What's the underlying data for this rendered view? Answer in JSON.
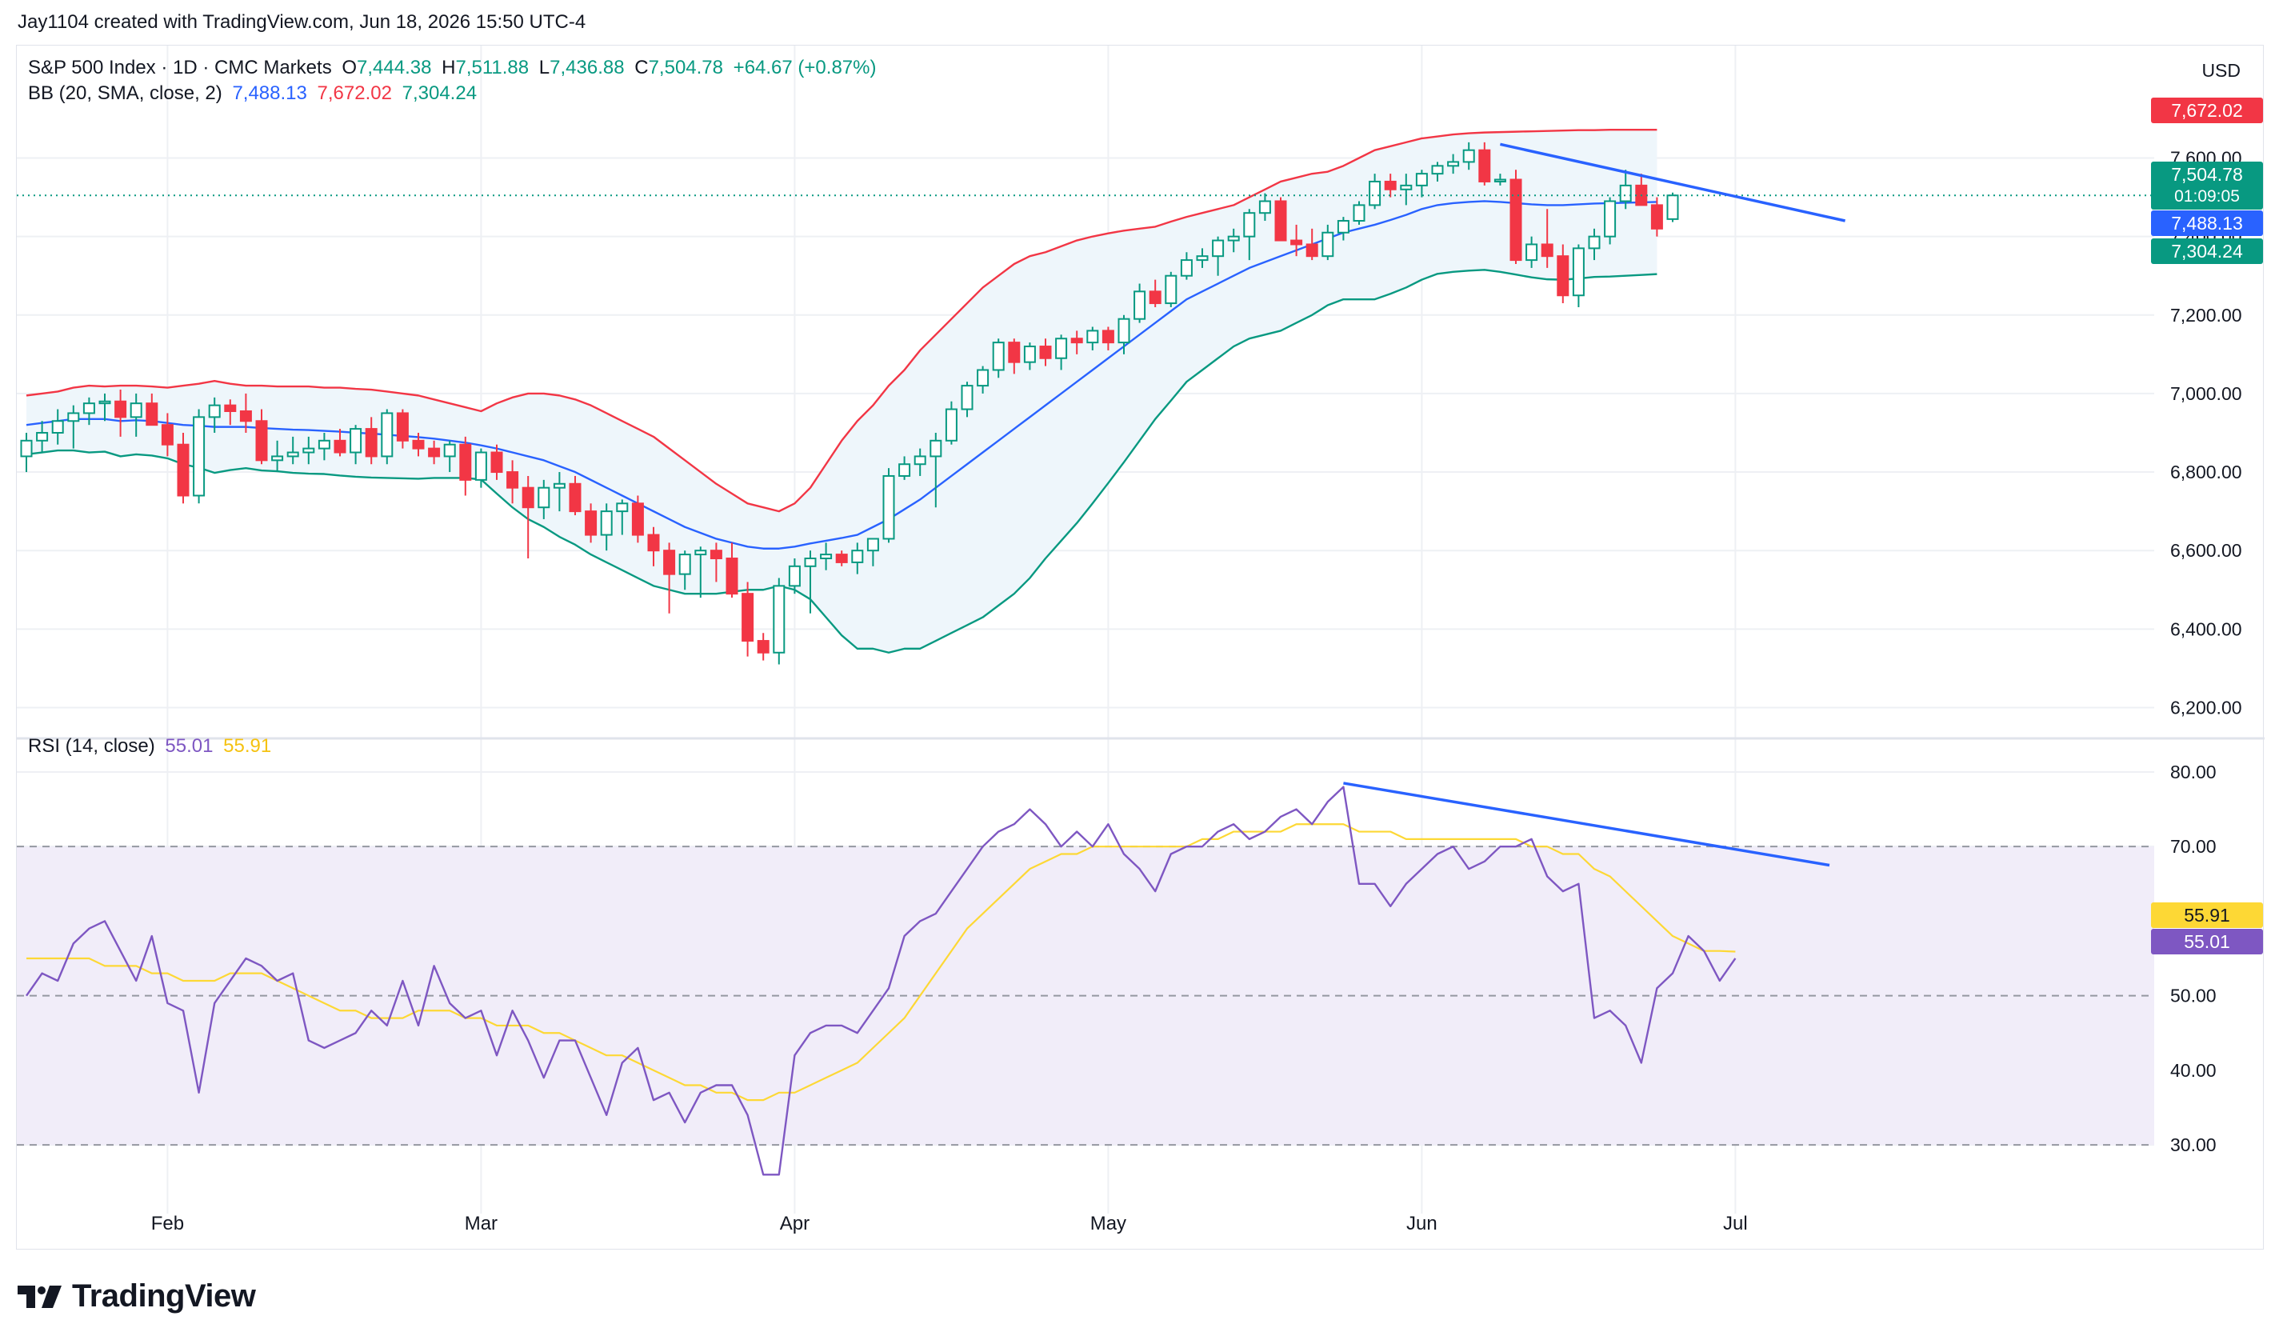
{
  "header": {
    "creator": "Jay1104 created with TradingView.com, Jun 18, 2026 15:50 UTC-4"
  },
  "legend": {
    "symbol": "S&P 500 Index · 1D · CMC Markets",
    "o_label": "O",
    "o": "7,444.38",
    "h_label": "H",
    "h": "7,511.88",
    "l_label": "L",
    "l": "7,436.88",
    "c_label": "C",
    "c": "7,504.78",
    "change": "+64.67 (+0.87%)",
    "bb_label": "BB (20, SMA, close, 2)",
    "bb_basis": "7,488.13",
    "bb_upper": "7,672.02",
    "bb_lower": "7,304.24",
    "rsi_label": "RSI (14, close)",
    "rsi_value": "55.01",
    "rsi_ma": "55.91"
  },
  "axis": {
    "currency": "USD",
    "price_ticks": [
      "7,600.00",
      "7,400.00",
      "7,200.00",
      "7,000.00",
      "6,800.00",
      "6,600.00",
      "6,400.00",
      "6,200.00"
    ],
    "rsi_ticks": [
      "80.00",
      "70.00",
      "60.00",
      "50.00",
      "40.00",
      "30.00"
    ],
    "months": [
      "Feb",
      "Mar",
      "Apr",
      "May",
      "Jun",
      "Jul"
    ]
  },
  "price_badges": {
    "upper": "7,672.02",
    "last": "7,504.78",
    "countdown": "01:09:05",
    "basis": "7,488.13",
    "lower": "7,304.24",
    "rsi_ma": "55.91",
    "rsi": "55.01"
  },
  "footer": {
    "brand": "TradingView"
  },
  "colors": {
    "up": "#089981",
    "down": "#f23645",
    "bb_basis": "#2962ff",
    "bb_upper": "#f23645",
    "bb_lower": "#089981",
    "bb_fill": "#eef6fb",
    "rsi": "#7e57c2",
    "rsi_ma": "#fdd835",
    "rsi_band": "#f1edf9",
    "trendline": "#2962ff"
  },
  "chart_data": [
    {
      "type": "candlestick",
      "title": "S&P 500 Index · 1D · CMC Markets",
      "ylim": [
        6150,
        7760
      ],
      "months": [
        {
          "label": "Feb",
          "index": 9
        },
        {
          "label": "Mar",
          "index": 29
        },
        {
          "label": "Apr",
          "index": 49
        },
        {
          "label": "May",
          "index": 69
        },
        {
          "label": "Jun",
          "index": 89
        },
        {
          "label": "Jul",
          "index": 109
        }
      ],
      "ohlc": [
        [
          6840,
          6900,
          6800,
          6880
        ],
        [
          6880,
          6930,
          6850,
          6900
        ],
        [
          6900,
          6960,
          6870,
          6930
        ],
        [
          6930,
          6970,
          6860,
          6950
        ],
        [
          6950,
          6990,
          6920,
          6975
        ],
        [
          6975,
          7000,
          6930,
          6980
        ],
        [
          6980,
          7010,
          6890,
          6940
        ],
        [
          6940,
          7000,
          6890,
          6975
        ],
        [
          6975,
          7000,
          6920,
          6920
        ],
        [
          6920,
          6950,
          6840,
          6870
        ],
        [
          6870,
          6900,
          6720,
          6740
        ],
        [
          6740,
          6960,
          6720,
          6940
        ],
        [
          6940,
          6990,
          6900,
          6970
        ],
        [
          6970,
          6985,
          6920,
          6955
        ],
        [
          6955,
          7000,
          6900,
          6930
        ],
        [
          6930,
          6960,
          6820,
          6830
        ],
        [
          6830,
          6880,
          6800,
          6840
        ],
        [
          6840,
          6890,
          6820,
          6850
        ],
        [
          6850,
          6890,
          6820,
          6860
        ],
        [
          6860,
          6900,
          6830,
          6880
        ],
        [
          6880,
          6910,
          6840,
          6850
        ],
        [
          6850,
          6920,
          6820,
          6910
        ],
        [
          6910,
          6940,
          6820,
          6840
        ],
        [
          6840,
          6960,
          6820,
          6950
        ],
        [
          6950,
          6960,
          6860,
          6880
        ],
        [
          6880,
          6900,
          6840,
          6860
        ],
        [
          6860,
          6880,
          6820,
          6840
        ],
        [
          6840,
          6880,
          6800,
          6870
        ],
        [
          6870,
          6890,
          6740,
          6780
        ],
        [
          6780,
          6860,
          6760,
          6850
        ],
        [
          6850,
          6870,
          6780,
          6800
        ],
        [
          6800,
          6830,
          6720,
          6760
        ],
        [
          6760,
          6790,
          6580,
          6710
        ],
        [
          6710,
          6780,
          6680,
          6760
        ],
        [
          6760,
          6800,
          6700,
          6770
        ],
        [
          6770,
          6790,
          6690,
          6700
        ],
        [
          6700,
          6720,
          6620,
          6640
        ],
        [
          6640,
          6720,
          6600,
          6700
        ],
        [
          6700,
          6730,
          6640,
          6720
        ],
        [
          6720,
          6740,
          6620,
          6640
        ],
        [
          6640,
          6660,
          6560,
          6600
        ],
        [
          6600,
          6620,
          6440,
          6540
        ],
        [
          6540,
          6600,
          6500,
          6590
        ],
        [
          6590,
          6610,
          6480,
          6600
        ],
        [
          6600,
          6620,
          6520,
          6580
        ],
        [
          6580,
          6620,
          6480,
          6490
        ],
        [
          6490,
          6520,
          6330,
          6370
        ],
        [
          6370,
          6390,
          6320,
          6340
        ],
        [
          6340,
          6530,
          6310,
          6510
        ],
        [
          6510,
          6580,
          6490,
          6560
        ],
        [
          6560,
          6600,
          6440,
          6580
        ],
        [
          6580,
          6620,
          6550,
          6590
        ],
        [
          6590,
          6600,
          6560,
          6570
        ],
        [
          6570,
          6620,
          6540,
          6600
        ],
        [
          6600,
          6630,
          6560,
          6630
        ],
        [
          6630,
          6810,
          6620,
          6790
        ],
        [
          6790,
          6840,
          6780,
          6820
        ],
        [
          6820,
          6860,
          6790,
          6840
        ],
        [
          6840,
          6900,
          6710,
          6880
        ],
        [
          6880,
          6980,
          6870,
          6960
        ],
        [
          6960,
          7030,
          6940,
          7020
        ],
        [
          7020,
          7070,
          7000,
          7060
        ],
        [
          7060,
          7140,
          7040,
          7130
        ],
        [
          7130,
          7140,
          7050,
          7080
        ],
        [
          7080,
          7130,
          7060,
          7120
        ],
        [
          7120,
          7140,
          7070,
          7090
        ],
        [
          7090,
          7150,
          7060,
          7140
        ],
        [
          7140,
          7160,
          7100,
          7130
        ],
        [
          7130,
          7170,
          7110,
          7160
        ],
        [
          7160,
          7170,
          7110,
          7130
        ],
        [
          7130,
          7200,
          7100,
          7190
        ],
        [
          7190,
          7280,
          7180,
          7260
        ],
        [
          7260,
          7290,
          7220,
          7230
        ],
        [
          7230,
          7310,
          7220,
          7300
        ],
        [
          7300,
          7360,
          7290,
          7340
        ],
        [
          7340,
          7370,
          7320,
          7350
        ],
        [
          7350,
          7400,
          7300,
          7390
        ],
        [
          7390,
          7420,
          7360,
          7400
        ],
        [
          7400,
          7470,
          7340,
          7460
        ],
        [
          7460,
          7510,
          7440,
          7490
        ],
        [
          7490,
          7500,
          7390,
          7390
        ],
        [
          7390,
          7430,
          7350,
          7380
        ],
        [
          7380,
          7420,
          7340,
          7350
        ],
        [
          7350,
          7430,
          7340,
          7410
        ],
        [
          7410,
          7450,
          7390,
          7440
        ],
        [
          7440,
          7490,
          7430,
          7480
        ],
        [
          7480,
          7560,
          7470,
          7540
        ],
        [
          7540,
          7560,
          7500,
          7520
        ],
        [
          7520,
          7560,
          7480,
          7530
        ],
        [
          7530,
          7570,
          7500,
          7560
        ],
        [
          7560,
          7590,
          7540,
          7580
        ],
        [
          7580,
          7610,
          7560,
          7590
        ],
        [
          7590,
          7640,
          7570,
          7620
        ],
        [
          7620,
          7640,
          7530,
          7540
        ],
        [
          7540,
          7560,
          7530,
          7545
        ],
        [
          7545,
          7570,
          7330,
          7340
        ],
        [
          7340,
          7400,
          7320,
          7380
        ],
        [
          7380,
          7470,
          7320,
          7350
        ],
        [
          7350,
          7380,
          7230,
          7250
        ],
        [
          7250,
          7380,
          7220,
          7370
        ],
        [
          7370,
          7420,
          7340,
          7400
        ],
        [
          7400,
          7500,
          7380,
          7490
        ],
        [
          7490,
          7570,
          7470,
          7530
        ],
        [
          7530,
          7560,
          7480,
          7480
        ],
        [
          7480,
          7500,
          7400,
          7420
        ],
        [
          7444.38,
          7511.88,
          7436.88,
          7504.78
        ]
      ],
      "bb_upper": [
        6995,
        7000,
        7005,
        7015,
        7020,
        7018,
        7020,
        7020,
        7018,
        7015,
        7020,
        7025,
        7032,
        7025,
        7020,
        7020,
        7018,
        7018,
        7018,
        7015,
        7015,
        7012,
        7010,
        7005,
        7000,
        6995,
        6985,
        6975,
        6965,
        6955,
        6975,
        6990,
        7000,
        7000,
        6995,
        6985,
        6970,
        6950,
        6930,
        6910,
        6890,
        6860,
        6830,
        6800,
        6770,
        6745,
        6720,
        6710,
        6700,
        6720,
        6760,
        6820,
        6880,
        6930,
        6970,
        7020,
        7060,
        7110,
        7150,
        7190,
        7230,
        7270,
        7300,
        7330,
        7350,
        7360,
        7375,
        7390,
        7400,
        7408,
        7415,
        7420,
        7425,
        7438,
        7450,
        7460,
        7470,
        7480,
        7500,
        7520,
        7540,
        7550,
        7560,
        7565,
        7580,
        7600,
        7620,
        7630,
        7640,
        7650,
        7655,
        7660,
        7663,
        7665,
        7666,
        7667,
        7668,
        7669,
        7670,
        7671,
        7671,
        7672,
        7672,
        7672,
        7672.02
      ],
      "bb_basis": [
        6920,
        6925,
        6930,
        6935,
        6935,
        6935,
        6930,
        6932,
        6930,
        6925,
        6920,
        6918,
        6915,
        6915,
        6915,
        6912,
        6910,
        6908,
        6907,
        6905,
        6903,
        6900,
        6898,
        6895,
        6892,
        6889,
        6885,
        6880,
        6875,
        6868,
        6860,
        6850,
        6840,
        6830,
        6815,
        6800,
        6780,
        6760,
        6740,
        6720,
        6700,
        6680,
        6660,
        6645,
        6630,
        6620,
        6610,
        6605,
        6605,
        6610,
        6618,
        6625,
        6632,
        6640,
        6660,
        6680,
        6705,
        6730,
        6760,
        6790,
        6820,
        6850,
        6880,
        6910,
        6940,
        6970,
        7000,
        7030,
        7060,
        7090,
        7120,
        7150,
        7180,
        7210,
        7240,
        7260,
        7280,
        7300,
        7320,
        7335,
        7350,
        7365,
        7380,
        7395,
        7410,
        7420,
        7430,
        7442,
        7455,
        7470,
        7480,
        7485,
        7488,
        7490,
        7488,
        7485,
        7482,
        7480,
        7480,
        7482,
        7484,
        7485,
        7486,
        7487,
        7488.13
      ],
      "bb_lower": [
        6845,
        6850,
        6855,
        6855,
        6850,
        6852,
        6840,
        6845,
        6842,
        6835,
        6820,
        6811,
        6798,
        6805,
        6810,
        6804,
        6802,
        6798,
        6796,
        6795,
        6791,
        6788,
        6786,
        6785,
        6784,
        6783,
        6785,
        6785,
        6785,
        6781,
        6745,
        6710,
        6680,
        6660,
        6635,
        6615,
        6590,
        6570,
        6550,
        6530,
        6510,
        6500,
        6490,
        6490,
        6490,
        6495,
        6500,
        6500,
        6510,
        6500,
        6476,
        6430,
        6384,
        6350,
        6350,
        6340,
        6350,
        6350,
        6370,
        6390,
        6410,
        6430,
        6460,
        6490,
        6530,
        6580,
        6625,
        6670,
        6720,
        6772,
        6825,
        6880,
        6935,
        6982,
        7030,
        7060,
        7090,
        7120,
        7140,
        7150,
        7160,
        7180,
        7200,
        7225,
        7240,
        7240,
        7240,
        7254,
        7270,
        7290,
        7305,
        7310,
        7313,
        7315,
        7310,
        7303,
        7296,
        7291,
        7290,
        7293,
        7297,
        7298,
        7300,
        7302,
        7304.24
      ],
      "trendline": {
        "from": [
          94,
          7635
        ],
        "to": [
          116,
          7440
        ]
      }
    },
    {
      "type": "line",
      "title": "RSI (14, close)",
      "ylim": [
        24,
        83
      ],
      "bands": [
        30,
        50,
        70
      ],
      "series": [
        {
          "name": "RSI",
          "values": [
            50,
            53,
            52,
            57,
            59,
            60,
            56,
            52,
            58,
            49,
            48,
            37,
            49,
            52,
            55,
            54,
            52,
            53,
            44,
            43,
            44,
            45,
            48,
            46,
            52,
            46,
            54,
            49,
            47,
            48,
            42,
            48,
            44,
            39,
            44,
            44,
            39,
            34,
            41,
            43,
            36,
            37,
            33,
            37,
            38,
            38,
            34,
            26,
            26,
            42,
            45,
            46,
            46,
            45,
            48,
            51,
            58,
            60,
            61,
            64,
            67,
            70,
            72,
            73,
            75,
            73,
            70,
            72,
            70,
            73,
            69,
            67,
            64,
            69,
            70,
            70,
            72,
            73,
            71,
            72,
            74,
            75,
            73,
            76,
            78,
            65,
            65,
            62,
            65,
            67,
            69,
            70,
            67,
            68,
            70,
            70,
            71,
            66,
            64,
            65,
            47,
            48,
            46,
            41,
            51,
            53,
            58,
            56,
            52,
            55.01
          ]
        },
        {
          "name": "RSI MA",
          "values": [
            55,
            55,
            55,
            55,
            55,
            54,
            54,
            54,
            53,
            53,
            52,
            52,
            52,
            53,
            53,
            53,
            52,
            51,
            50,
            49,
            48,
            48,
            47,
            47,
            47,
            48,
            48,
            48,
            47,
            47,
            46,
            46,
            46,
            45,
            45,
            44,
            43,
            42,
            42,
            41,
            40,
            39,
            38,
            38,
            37,
            37,
            36,
            36,
            37,
            37,
            38,
            39,
            40,
            41,
            43,
            45,
            47,
            50,
            53,
            56,
            59,
            61,
            63,
            65,
            67,
            68,
            69,
            69,
            70,
            70,
            70,
            70,
            70,
            70,
            70,
            71,
            71,
            72,
            72,
            72,
            72,
            73,
            73,
            73,
            73,
            72,
            72,
            72,
            71,
            71,
            71,
            71,
            71,
            71,
            71,
            71,
            70,
            70,
            69,
            69,
            67,
            66,
            64,
            62,
            60,
            58,
            57,
            56,
            56,
            55.91
          ]
        }
      ],
      "trendline": {
        "from": [
          84,
          78.5
        ],
        "to": [
          115,
          67.5
        ]
      }
    }
  ]
}
